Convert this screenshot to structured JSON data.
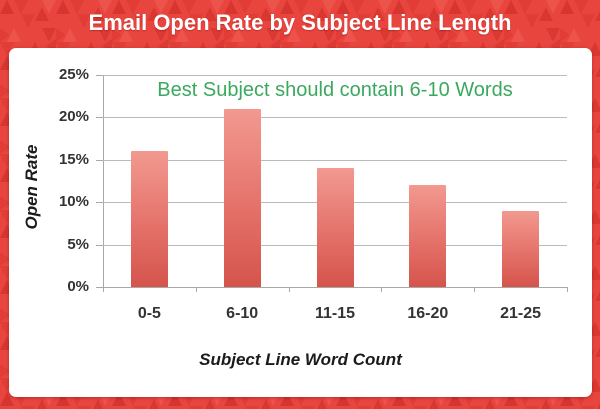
{
  "chart_data": {
    "type": "bar",
    "title": "Email Open Rate by Subject Line Length",
    "categories": [
      "0-5",
      "6-10",
      "11-15",
      "16-20",
      "21-25"
    ],
    "values": [
      16,
      21,
      14,
      12,
      9
    ],
    "value_unit": "%",
    "xlabel": "Subject Line Word Count",
    "ylabel": "Open Rate",
    "ylim": [
      0,
      25
    ],
    "ytick_step": 5,
    "ytick_labels": [
      "0%",
      "5%",
      "10%",
      "15%",
      "20%",
      "25%"
    ],
    "annotation": "Best Subject should contain 6-10 Words",
    "grid": "horizontal",
    "legend": "none",
    "colors": {
      "background": "#e8453f",
      "background_triangle_dark": "#d7352f",
      "background_triangle_mid": "#e23c36",
      "background_triangle_light": "#ef584e",
      "panel": "#ffffff",
      "title_text": "#ffffff",
      "bar_top": "#f29990",
      "bar_mid": "#e4726a",
      "bar_bottom": "#d5544c",
      "annotation_green": "#3aa95f",
      "axis_text": "#333333",
      "gridline": "#bbbbbb",
      "axis_line": "#a8a8a8"
    }
  }
}
